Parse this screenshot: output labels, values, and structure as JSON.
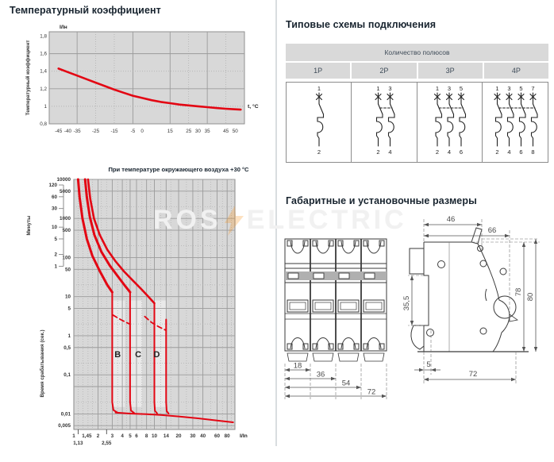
{
  "titles": {
    "temp_coeff": "Температурный коэффициент",
    "schemes": "Типовые схемы подключения",
    "dimensions": "Габаритные и установочные размеры"
  },
  "watermark": {
    "left": "ROS",
    "right": "ELECTRIC",
    "bolt_color": "#f7941d"
  },
  "schemes_table": {
    "header": "Количество полюсов",
    "columns": [
      {
        "label": "1P",
        "top": [
          "1"
        ],
        "bottom": [
          "2"
        ]
      },
      {
        "label": "2P",
        "top": [
          "1",
          "3"
        ],
        "bottom": [
          "2",
          "4"
        ]
      },
      {
        "label": "3P",
        "top": [
          "1",
          "3",
          "5"
        ],
        "bottom": [
          "2",
          "4",
          "6"
        ]
      },
      {
        "label": "4P",
        "top": [
          "1",
          "3",
          "5",
          "7"
        ],
        "bottom": [
          "2",
          "4",
          "6",
          "8"
        ]
      }
    ]
  },
  "dimensions": {
    "front": {
      "widths": [
        "18",
        "36",
        "54",
        "72"
      ]
    },
    "side": {
      "top": [
        "46",
        "66"
      ],
      "left": "35,5",
      "right": [
        "78",
        "80"
      ],
      "bottom": [
        "5",
        "72"
      ]
    }
  },
  "chart_data": [
    {
      "type": "line",
      "title": "Температурный коэффициент",
      "y_unit_label": "I/Iн",
      "xlabel": "t, °C",
      "ylabel": "Температурный коэффициент",
      "xlim": [
        -50,
        55
      ],
      "ylim": [
        0.8,
        1.85
      ],
      "xticks": [
        -45,
        -40,
        -35,
        -25,
        -15,
        -5,
        0,
        15,
        25,
        30,
        35,
        45,
        50
      ],
      "xtick_labels": [
        "-45",
        "-40",
        "-35",
        "-25",
        "-15",
        "-5",
        "0",
        "15",
        "25",
        "30",
        "35",
        "45",
        "50"
      ],
      "yticks": [
        1.8,
        1.6,
        1.4,
        1.2,
        1.0,
        0.8
      ],
      "ytick_labels": [
        "1,8",
        "1,6",
        "1,4",
        "1,2",
        "1",
        "0,8"
      ],
      "grid_x": [
        -35,
        -5,
        15,
        35
      ],
      "grid_x_dot": [
        -25,
        -15,
        25,
        45
      ],
      "grid_y": [
        1.6,
        1.2
      ],
      "grid_y_dot": [
        1.4,
        1.0
      ],
      "accent_color": "#e30613",
      "series": [
        {
          "name": "temperature-coefficient",
          "color": "#e30613",
          "points": [
            [
              -45,
              1.43
            ],
            [
              -40,
              1.39
            ],
            [
              -35,
              1.35
            ],
            [
              -30,
              1.31
            ],
            [
              -25,
              1.27
            ],
            [
              -20,
              1.23
            ],
            [
              -15,
              1.19
            ],
            [
              -10,
              1.155
            ],
            [
              -5,
              1.12
            ],
            [
              0,
              1.095
            ],
            [
              5,
              1.07
            ],
            [
              10,
              1.05
            ],
            [
              15,
              1.035
            ],
            [
              20,
              1.02
            ],
            [
              25,
              1.01
            ],
            [
              30,
              1.0
            ],
            [
              35,
              0.99
            ],
            [
              40,
              0.98
            ],
            [
              45,
              0.972
            ],
            [
              50,
              0.966
            ],
            [
              53,
              0.962
            ]
          ]
        }
      ]
    },
    {
      "type": "line",
      "title": "При температуре окружающего воздуха +30 °С",
      "xlabel": "I/In",
      "ylabel": "Время срабатывания (сек.)",
      "ylabel_outer": "Минуты",
      "xscale": "log",
      "yscale": "log",
      "xlim": [
        1,
        100
      ],
      "ylim": [
        0.004,
        10000
      ],
      "xticks": [
        1,
        1.45,
        2,
        3,
        4,
        5,
        6,
        8,
        10,
        14,
        20,
        30,
        40,
        60,
        80
      ],
      "xtick_labels": [
        "1",
        "1,45",
        "2",
        "3",
        "4",
        "5",
        "6",
        "8",
        "10",
        "14",
        "20",
        "30",
        "40",
        "60",
        "80"
      ],
      "xticks_secondary": [
        1.13,
        2.55
      ],
      "xtick_secondary_labels": [
        "1,13",
        "2,55"
      ],
      "yticks": [
        10000,
        5000,
        1000,
        500,
        100,
        50,
        10,
        5,
        1,
        0.5,
        0.1,
        0.01,
        0.005
      ],
      "ytick_labels": [
        "10000",
        "5000",
        "1000",
        "500",
        "100",
        "50",
        "10",
        "5",
        "1",
        "0,5",
        "0,1",
        "0,01",
        "0,005"
      ],
      "minutes_ticks": [
        120,
        60,
        30,
        10,
        5,
        2,
        1
      ],
      "grid_x": [
        2,
        3,
        4,
        5,
        6,
        8,
        10,
        14,
        20,
        30,
        40,
        60,
        80
      ],
      "grid_x_dot": [
        1.13,
        1.3,
        1.5,
        1.7,
        2.2,
        2.55,
        3.5,
        4.5,
        7,
        9,
        12,
        16,
        25,
        35,
        50,
        70,
        90
      ],
      "grid_y": [
        10000,
        5000,
        1000,
        500,
        100,
        50,
        10,
        5,
        1,
        0.5,
        0.1,
        0.05,
        0.01,
        0.005
      ],
      "grid_y_dot": [
        2000,
        200,
        20,
        2,
        0.2,
        0.02
      ],
      "zone_labels": [
        {
          "text": "B",
          "x": 3.5,
          "y": 0.28
        },
        {
          "text": "C",
          "x": 6.3,
          "y": 0.28
        },
        {
          "text": "D",
          "x": 10.7,
          "y": 0.28
        }
      ],
      "zones": [
        [
          3,
          4.3
        ],
        [
          5,
          7
        ],
        [
          10,
          14
        ]
      ],
      "curves": [
        {
          "name": "thermal-lower-B",
          "style": "solid",
          "w": 3.0,
          "points": [
            [
              1.13,
              10000
            ],
            [
              1.18,
              3500
            ],
            [
              1.28,
              1000
            ],
            [
              1.45,
              300
            ],
            [
              1.7,
              110
            ],
            [
              2.1,
              45
            ],
            [
              2.6,
              20
            ],
            [
              3,
              13
            ]
          ]
        },
        {
          "name": "magnetic-B",
          "style": "solid",
          "w": 2.0,
          "points": [
            [
              3,
              13
            ],
            [
              3,
              0.02
            ],
            [
              3.1,
              0.0125
            ],
            [
              3.5,
              0.0108
            ]
          ]
        },
        {
          "name": "thermal-mid",
          "style": "solid",
          "w": 3.0,
          "points": [
            [
              1.38,
              10000
            ],
            [
              1.45,
              3500
            ],
            [
              1.58,
              1100
            ],
            [
              1.8,
              380
            ],
            [
              2.2,
              140
            ],
            [
              2.8,
              62
            ],
            [
              3.6,
              31
            ],
            [
              4.4,
              18
            ],
            [
              5,
              13
            ]
          ]
        },
        {
          "name": "magnetic-C",
          "style": "solid",
          "w": 2.0,
          "points": [
            [
              5,
              13
            ],
            [
              5,
              0.02
            ],
            [
              5.12,
              0.0122
            ],
            [
              5.6,
              0.0106
            ]
          ]
        },
        {
          "name": "thermal-upper",
          "style": "solid",
          "w": 2.6,
          "points": [
            [
              1.5,
              10000
            ],
            [
              1.6,
              3200
            ],
            [
              1.78,
              1000
            ],
            [
              2.1,
              380
            ],
            [
              2.6,
              160
            ],
            [
              3.3,
              80
            ],
            [
              4.2,
              44
            ],
            [
              5.4,
              26
            ],
            [
              7,
              15
            ],
            [
              8.6,
              9.5
            ],
            [
              10,
              6.8
            ]
          ]
        },
        {
          "name": "magnetic-D-left",
          "style": "solid",
          "w": 2.0,
          "points": [
            [
              10,
              6.8
            ],
            [
              10,
              0.02
            ],
            [
              10.15,
              0.012
            ],
            [
              10.8,
              0.0104
            ]
          ]
        },
        {
          "name": "upper-bound-dashed-BC",
          "style": "dashed",
          "w": 1.8,
          "points": [
            [
              3.05,
              3.4
            ],
            [
              3.8,
              2.6
            ],
            [
              4.9,
              2.0
            ]
          ]
        },
        {
          "name": "upper-bound-dashed-D",
          "style": "dashed",
          "w": 1.8,
          "points": [
            [
              7.6,
              3.1
            ],
            [
              9.2,
              2.2
            ],
            [
              11.3,
              1.7
            ],
            [
              13.9,
              1.38
            ]
          ]
        },
        {
          "name": "magnetic-D-right",
          "style": "solid",
          "w": 2.0,
          "points": [
            [
              14,
              2.6
            ],
            [
              14,
              0.02
            ],
            [
              14.2,
              0.0118
            ],
            [
              15,
              0.0102
            ]
          ]
        },
        {
          "name": "instantaneous-tail",
          "style": "solid",
          "w": 2.0,
          "points": [
            [
              3.3,
              0.0108
            ],
            [
              5,
              0.0102
            ],
            [
              8,
              0.0098
            ],
            [
              12,
              0.0094
            ],
            [
              20,
              0.0086
            ],
            [
              35,
              0.0077
            ],
            [
              60,
              0.0068
            ],
            [
              95,
              0.0061
            ]
          ]
        }
      ]
    }
  ]
}
